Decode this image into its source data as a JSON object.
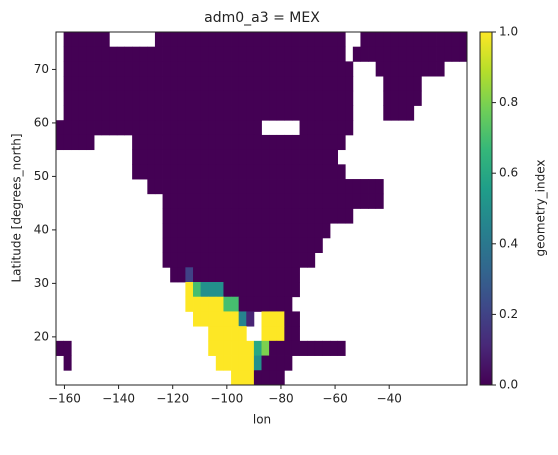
{
  "chart_data": {
    "type": "heatmap",
    "title": "adm0_a3 = MEX",
    "xlabel": "lon",
    "ylabel": "Latitude [degrees_north]",
    "colorbar_label": "geometry_index",
    "colormap": [
      "#440154",
      "#482878",
      "#3e4989",
      "#31688e",
      "#26828e",
      "#1f9e89",
      "#35b779",
      "#6ece58",
      "#b5de2b",
      "#fde725"
    ],
    "clim": [
      0,
      1
    ],
    "cticks": [
      {
        "value": 0,
        "label": "0.0"
      },
      {
        "value": 0.2,
        "label": "0.2"
      },
      {
        "value": 0.4,
        "label": "0.4"
      },
      {
        "value": 0.6,
        "label": "0.6"
      },
      {
        "value": 0.8,
        "label": "0.8"
      },
      {
        "value": 1,
        "label": "1.0"
      }
    ],
    "xlim": [
      -163.125,
      -11.25
    ],
    "xticks": [
      {
        "value": -160,
        "label": "−160"
      },
      {
        "value": -140,
        "label": "−140"
      },
      {
        "value": -120,
        "label": "−120"
      },
      {
        "value": -100,
        "label": "−100"
      },
      {
        "value": -80,
        "label": "−80"
      },
      {
        "value": -60,
        "label": "−60"
      },
      {
        "value": -40,
        "label": "−40"
      }
    ],
    "ylim": [
      11,
      77
    ],
    "yticks": [
      20,
      30,
      40,
      50,
      60,
      70
    ],
    "x": [
      -161.72,
      -158.91,
      -156.09,
      -153.28,
      -150.47,
      -147.66,
      -144.84,
      -142.03,
      -139.22,
      -136.41,
      -133.59,
      -130.78,
      -127.97,
      -125.16,
      -122.34,
      -119.53,
      -116.72,
      -113.91,
      -111.09,
      -108.28,
      -105.47,
      -102.66,
      -99.84,
      -97.03,
      -94.22,
      -91.41,
      -88.59,
      -85.78,
      -82.97,
      -80.16,
      -77.34,
      -74.53,
      -71.72,
      -68.91,
      -66.09,
      -63.28,
      -60.47,
      -57.66,
      -54.84,
      -52.03,
      -49.22,
      -46.41,
      -43.59,
      -40.78,
      -37.97,
      -35.16,
      -32.34,
      -29.53,
      -26.72,
      -23.91,
      -21.09,
      -18.28,
      -15.47,
      -12.66
    ],
    "y": [
      75.63,
      72.88,
      70.13,
      67.38,
      64.63,
      61.88,
      59.13,
      56.38,
      53.63,
      50.88,
      48.13,
      45.38,
      42.63,
      39.88,
      37.13,
      34.38,
      31.63,
      28.88,
      26.13,
      23.38,
      20.63,
      17.88,
      15.13,
      12.38
    ],
    "z": [
      [
        null,
        0,
        0,
        0,
        0,
        0,
        0,
        null,
        null,
        null,
        null,
        null,
        null,
        0,
        0,
        0,
        0,
        0,
        0,
        0,
        0,
        0,
        0,
        0,
        0,
        0,
        0,
        0,
        0,
        0,
        0,
        0,
        0,
        0,
        0,
        0,
        0,
        0,
        null,
        null,
        0,
        0,
        0,
        0,
        0,
        0,
        0,
        0,
        0,
        0,
        0,
        0,
        0,
        0
      ],
      [
        null,
        0,
        0,
        0,
        0,
        0,
        0,
        0,
        0,
        0,
        0,
        0,
        0,
        0,
        0,
        0,
        0,
        0,
        0,
        0,
        0,
        0,
        0,
        0,
        0,
        0,
        0,
        0,
        0,
        0,
        0,
        0,
        0,
        0,
        0,
        0,
        0,
        0,
        null,
        0,
        0,
        0,
        0,
        0,
        0,
        0,
        0,
        0,
        0,
        0,
        0,
        0,
        0,
        0
      ],
      [
        null,
        0,
        0,
        0,
        0,
        0,
        0,
        0,
        0,
        0,
        0,
        0,
        0,
        0,
        0,
        0,
        0,
        0,
        0,
        0,
        0,
        0,
        0,
        0,
        0,
        0,
        0,
        0,
        0,
        0,
        0,
        0,
        0,
        0,
        0,
        0,
        0,
        0,
        0,
        null,
        null,
        null,
        0,
        0,
        0,
        0,
        0,
        0,
        0,
        0,
        0,
        null,
        null,
        null
      ],
      [
        null,
        0,
        0,
        0,
        0,
        0,
        0,
        0,
        0,
        0,
        0,
        0,
        0,
        0,
        0,
        0,
        0,
        0,
        0,
        0,
        0,
        0,
        0,
        0,
        0,
        0,
        0,
        0,
        0,
        0,
        0,
        0,
        0,
        0,
        0,
        0,
        0,
        0,
        0,
        null,
        null,
        null,
        null,
        0,
        0,
        0,
        0,
        0,
        null,
        null,
        null,
        null,
        null,
        null
      ],
      [
        null,
        0,
        0,
        0,
        0,
        0,
        0,
        0,
        0,
        0,
        0,
        0,
        0,
        0,
        0,
        0,
        0,
        0,
        0,
        0,
        0,
        0,
        0,
        0,
        0,
        0,
        0,
        0,
        0,
        0,
        0,
        0,
        0,
        0,
        0,
        0,
        0,
        0,
        0,
        null,
        null,
        null,
        null,
        0,
        0,
        0,
        0,
        0,
        null,
        null,
        null,
        null,
        null,
        null
      ],
      [
        null,
        0,
        0,
        0,
        0,
        0,
        0,
        0,
        0,
        0,
        0,
        0,
        0,
        0,
        0,
        0,
        0,
        0,
        0,
        0,
        0,
        0,
        0,
        0,
        0,
        0,
        0,
        0,
        0,
        0,
        0,
        0,
        0,
        0,
        0,
        0,
        0,
        0,
        0,
        null,
        null,
        null,
        null,
        0,
        0,
        0,
        0,
        null,
        null,
        null,
        null,
        null,
        null,
        null
      ],
      [
        0,
        0,
        0,
        0,
        0,
        0,
        0,
        0,
        0,
        0,
        0,
        0,
        0,
        0,
        0,
        0,
        0,
        0,
        0,
        0,
        0,
        0,
        0,
        0,
        0,
        0,
        0,
        null,
        null,
        null,
        null,
        null,
        0,
        0,
        0,
        0,
        0,
        0,
        0,
        null,
        null,
        null,
        null,
        null,
        null,
        null,
        null,
        null,
        null,
        null,
        null,
        null,
        null,
        null
      ],
      [
        0,
        0,
        0,
        0,
        0,
        null,
        null,
        null,
        null,
        null,
        0,
        0,
        0,
        0,
        0,
        0,
        0,
        0,
        0,
        0,
        0,
        0,
        0,
        0,
        0,
        0,
        0,
        0,
        0,
        0,
        0,
        0,
        0,
        0,
        0,
        0,
        0,
        0,
        null,
        null,
        null,
        null,
        null,
        null,
        null,
        null,
        null,
        null,
        null,
        null,
        null,
        null,
        null,
        null
      ],
      [
        null,
        null,
        null,
        null,
        null,
        null,
        null,
        null,
        null,
        null,
        0,
        0,
        0,
        0,
        0,
        0,
        0,
        0,
        0,
        0,
        0,
        0,
        0,
        0,
        0,
        0,
        0,
        0,
        0,
        0,
        0,
        0,
        0,
        0,
        0,
        0,
        0,
        null,
        null,
        null,
        null,
        null,
        null,
        null,
        null,
        null,
        null,
        null,
        null,
        null,
        null,
        null,
        null,
        null
      ],
      [
        null,
        null,
        null,
        null,
        null,
        null,
        null,
        null,
        null,
        null,
        0,
        0,
        0,
        0,
        0,
        0,
        0,
        0,
        0,
        0,
        0,
        0,
        0,
        0,
        0,
        0,
        0,
        0,
        0,
        0,
        0,
        0,
        0,
        0,
        0,
        0,
        0,
        0,
        null,
        null,
        null,
        null,
        null,
        null,
        null,
        null,
        null,
        null,
        null,
        null,
        null,
        null,
        null,
        null
      ],
      [
        null,
        null,
        null,
        null,
        null,
        null,
        null,
        null,
        null,
        null,
        null,
        null,
        0,
        0,
        0,
        0,
        0,
        0,
        0,
        0,
        0,
        0,
        0,
        0,
        0,
        0,
        0,
        0,
        0,
        0,
        0,
        0,
        0,
        0,
        0,
        0,
        0,
        0,
        0,
        0,
        0,
        0,
        0,
        null,
        null,
        null,
        null,
        null,
        null,
        null,
        null,
        null,
        null,
        null
      ],
      [
        null,
        null,
        null,
        null,
        null,
        null,
        null,
        null,
        null,
        null,
        null,
        null,
        null,
        null,
        0,
        0,
        0,
        0,
        0,
        0,
        0,
        0,
        0,
        0,
        0,
        0,
        0,
        0,
        0,
        0,
        0,
        0,
        0,
        0,
        0,
        0,
        0,
        0,
        0,
        0,
        0,
        0,
        0,
        null,
        null,
        null,
        null,
        null,
        null,
        null,
        null,
        null,
        null,
        null
      ],
      [
        null,
        null,
        null,
        null,
        null,
        null,
        null,
        null,
        null,
        null,
        null,
        null,
        null,
        null,
        0,
        0,
        0,
        0,
        0,
        0,
        0,
        0,
        0,
        0,
        0,
        0,
        0,
        0,
        0,
        0,
        0,
        0,
        0,
        0,
        0,
        0,
        0,
        0,
        0,
        null,
        null,
        null,
        null,
        null,
        null,
        null,
        null,
        null,
        null,
        null,
        null,
        null,
        null,
        null
      ],
      [
        null,
        null,
        null,
        null,
        null,
        null,
        null,
        null,
        null,
        null,
        null,
        null,
        null,
        null,
        0,
        0,
        0,
        0,
        0,
        0,
        0,
        0,
        0,
        0,
        0,
        0,
        0,
        0,
        0,
        0,
        0,
        0,
        0,
        0,
        0,
        0,
        null,
        null,
        null,
        null,
        null,
        null,
        null,
        null,
        null,
        null,
        null,
        null,
        null,
        null,
        null,
        null,
        null,
        null
      ],
      [
        null,
        null,
        null,
        null,
        null,
        null,
        null,
        null,
        null,
        null,
        null,
        null,
        null,
        null,
        0,
        0,
        0,
        0,
        0,
        0,
        0,
        0,
        0,
        0,
        0,
        0,
        0,
        0,
        0,
        0,
        0,
        0,
        0,
        0,
        0,
        null,
        null,
        null,
        null,
        null,
        null,
        null,
        null,
        null,
        null,
        null,
        null,
        null,
        null,
        null,
        null,
        null,
        null,
        null
      ],
      [
        null,
        null,
        null,
        null,
        null,
        null,
        null,
        null,
        null,
        null,
        null,
        null,
        null,
        null,
        0,
        0,
        0,
        0,
        0,
        0,
        0,
        0,
        0,
        0,
        0,
        0,
        0,
        0,
        0,
        0,
        0,
        0,
        0,
        0,
        null,
        null,
        null,
        null,
        null,
        null,
        null,
        null,
        null,
        null,
        null,
        null,
        null,
        null,
        null,
        null,
        null,
        null,
        null,
        null
      ],
      [
        null,
        null,
        null,
        null,
        null,
        null,
        null,
        null,
        null,
        null,
        null,
        null,
        null,
        null,
        null,
        0,
        0,
        0.2,
        0,
        0,
        0,
        0,
        0,
        0,
        0,
        0,
        0,
        0,
        0,
        0,
        0,
        0,
        null,
        null,
        null,
        null,
        null,
        null,
        null,
        null,
        null,
        null,
        null,
        null,
        null,
        null,
        null,
        null,
        null,
        null,
        null,
        null,
        null,
        null
      ],
      [
        null,
        null,
        null,
        null,
        null,
        null,
        null,
        null,
        null,
        null,
        null,
        null,
        null,
        null,
        null,
        null,
        null,
        1,
        0.7,
        0.5,
        0.5,
        0.5,
        0,
        0,
        0,
        0,
        0,
        0,
        0,
        0,
        0,
        0,
        null,
        null,
        null,
        null,
        null,
        null,
        null,
        null,
        null,
        null,
        null,
        null,
        null,
        null,
        null,
        null,
        null,
        null,
        null,
        null,
        null,
        null
      ],
      [
        null,
        null,
        null,
        null,
        null,
        null,
        null,
        null,
        null,
        null,
        null,
        null,
        null,
        null,
        null,
        null,
        null,
        1,
        1,
        1,
        1,
        1,
        0.7,
        0.7,
        0,
        0,
        0,
        0,
        0,
        0,
        0,
        null,
        null,
        null,
        null,
        null,
        null,
        null,
        null,
        null,
        null,
        null,
        null,
        null,
        null,
        null,
        null,
        null,
        null,
        null,
        null,
        null,
        null,
        null
      ],
      [
        null,
        null,
        null,
        null,
        null,
        null,
        null,
        null,
        null,
        null,
        null,
        null,
        null,
        null,
        null,
        null,
        null,
        null,
        1,
        1,
        1,
        1,
        1,
        1,
        0.45,
        0.1,
        null,
        1,
        1,
        1,
        0,
        0,
        null,
        null,
        null,
        null,
        null,
        null,
        null,
        null,
        null,
        null,
        null,
        null,
        null,
        null,
        null,
        null,
        null,
        null,
        null,
        null,
        null,
        null
      ],
      [
        null,
        null,
        null,
        null,
        null,
        null,
        null,
        null,
        null,
        null,
        null,
        null,
        null,
        null,
        null,
        null,
        null,
        null,
        null,
        null,
        1,
        1,
        1,
        1,
        1,
        null,
        null,
        1,
        1,
        1,
        0,
        0,
        null,
        null,
        null,
        null,
        null,
        null,
        null,
        null,
        null,
        null,
        null,
        null,
        null,
        null,
        null,
        null,
        null,
        null,
        null,
        null,
        null,
        null
      ],
      [
        0,
        0,
        null,
        null,
        null,
        null,
        null,
        null,
        null,
        null,
        null,
        null,
        null,
        null,
        null,
        null,
        null,
        null,
        null,
        null,
        1,
        1,
        1,
        1,
        1,
        1,
        0.6,
        0.8,
        0,
        0,
        0,
        0,
        0,
        0,
        0,
        0,
        0,
        0,
        null,
        null,
        null,
        null,
        null,
        null,
        null,
        null,
        null,
        null,
        null,
        null,
        null,
        null,
        null,
        null
      ],
      [
        null,
        0,
        null,
        null,
        null,
        null,
        null,
        null,
        null,
        null,
        null,
        null,
        null,
        null,
        null,
        null,
        null,
        null,
        null,
        null,
        null,
        1,
        1,
        1,
        1,
        1,
        0.5,
        0,
        0,
        0,
        0,
        null,
        null,
        null,
        null,
        null,
        null,
        null,
        null,
        null,
        null,
        null,
        null,
        null,
        null,
        null,
        null,
        null,
        null,
        null,
        null,
        null,
        null,
        null
      ],
      [
        null,
        null,
        null,
        null,
        null,
        null,
        null,
        null,
        null,
        null,
        null,
        null,
        null,
        null,
        null,
        null,
        null,
        null,
        null,
        null,
        null,
        null,
        null,
        1,
        1,
        1,
        0,
        0,
        0,
        0,
        null,
        null,
        null,
        null,
        null,
        null,
        null,
        null,
        null,
        null,
        null,
        null,
        null,
        null,
        null,
        null,
        null,
        null,
        null,
        null,
        null,
        null,
        null,
        null
      ]
    ]
  }
}
